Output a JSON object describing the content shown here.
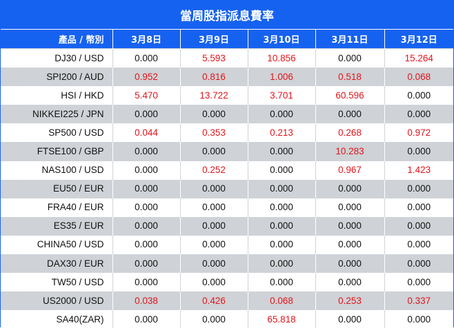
{
  "title": "當周股指派息費率",
  "header": {
    "symbol_col": "產品 / 幣別",
    "dates": [
      "3月8日",
      "3月9日",
      "3月10日",
      "3月11日",
      "3月12日"
    ]
  },
  "colors": {
    "header_bg": "#1662f0",
    "positive": "#e3141b",
    "zero": "#111111",
    "stripe": "#cfd2d6"
  },
  "rows": [
    {
      "symbol": "DJ30 / USD",
      "values": [
        "0.000",
        "5.593",
        "10.856",
        "0.000",
        "15.264"
      ]
    },
    {
      "symbol": "SPI200 / AUD",
      "values": [
        "0.952",
        "0.816",
        "1.006",
        "0.518",
        "0.068"
      ]
    },
    {
      "symbol": "HSI / HKD",
      "values": [
        "5.470",
        "13.722",
        "3.701",
        "60.596",
        "0.000"
      ]
    },
    {
      "symbol": "NIKKEI225 / JPN",
      "values": [
        "0.000",
        "0.000",
        "0.000",
        "0.000",
        "0.000"
      ]
    },
    {
      "symbol": "SP500 / USD",
      "values": [
        "0.044",
        "0.353",
        "0.213",
        "0.268",
        "0.972"
      ]
    },
    {
      "symbol": "FTSE100 / GBP",
      "values": [
        "0.000",
        "0.000",
        "0.000",
        "10.283",
        "0.000"
      ]
    },
    {
      "symbol": "NAS100 / USD",
      "values": [
        "0.000",
        "0.252",
        "0.000",
        "0.967",
        "1.423"
      ]
    },
    {
      "symbol": "EU50 / EUR",
      "values": [
        "0.000",
        "0.000",
        "0.000",
        "0.000",
        "0.000"
      ]
    },
    {
      "symbol": "FRA40 / EUR",
      "values": [
        "0.000",
        "0.000",
        "0.000",
        "0.000",
        "0.000"
      ]
    },
    {
      "symbol": "ES35 / EUR",
      "values": [
        "0.000",
        "0.000",
        "0.000",
        "0.000",
        "0.000"
      ]
    },
    {
      "symbol": "CHINA50 / USD",
      "values": [
        "0.000",
        "0.000",
        "0.000",
        "0.000",
        "0.000"
      ]
    },
    {
      "symbol": "DAX30 / EUR",
      "values": [
        "0.000",
        "0.000",
        "0.000",
        "0.000",
        "0.000"
      ]
    },
    {
      "symbol": "TW50 / USD",
      "values": [
        "0.000",
        "0.000",
        "0.000",
        "0.000",
        "0.000"
      ]
    },
    {
      "symbol": "US2000 / USD",
      "values": [
        "0.038",
        "0.426",
        "0.068",
        "0.253",
        "0.337"
      ]
    },
    {
      "symbol": "SA40(ZAR)",
      "values": [
        "0.000",
        "0.000",
        "65.818",
        "0.000",
        "0.000"
      ]
    }
  ]
}
